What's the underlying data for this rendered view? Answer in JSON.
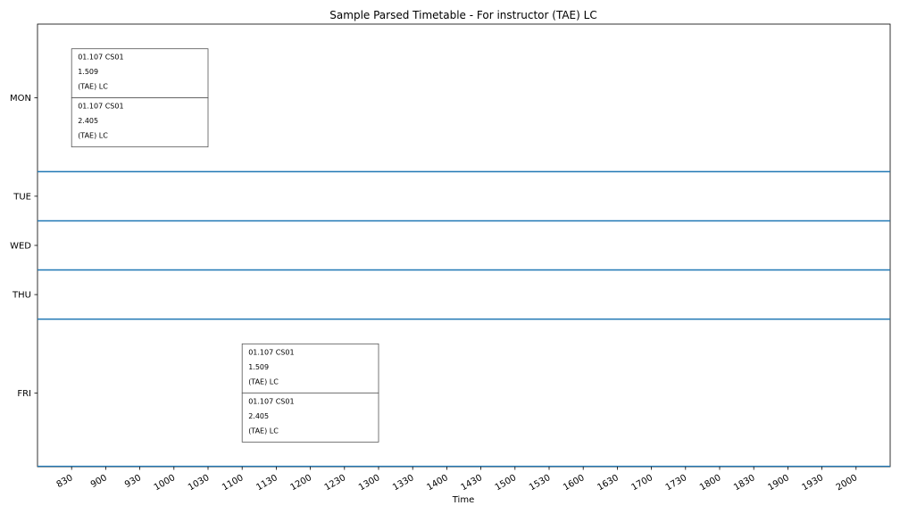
{
  "chart_data": {
    "type": "timetable",
    "title": "Sample Parsed Timetable - For instructor (TAE) LC",
    "xlabel": "Time",
    "ylabel": "",
    "x_ticks": [
      "830",
      "900",
      "930",
      "1000",
      "1030",
      "1100",
      "1130",
      "1200",
      "1230",
      "1300",
      "1330",
      "1400",
      "1430",
      "1500",
      "1530",
      "1600",
      "1630",
      "1700",
      "1730",
      "1800",
      "1830",
      "1900",
      "1930",
      "2000"
    ],
    "xlim_hours": [
      8.0,
      20.5
    ],
    "days": [
      "MON",
      "TUE",
      "WED",
      "THU",
      "FRI"
    ],
    "day_row_heights": [
      3,
      1,
      1,
      1,
      3
    ],
    "colors": {
      "divider": "#1f77b4",
      "box_border": "#555555",
      "frame": "#000000"
    },
    "events": [
      {
        "day": "MON",
        "start": "830",
        "end": "1030",
        "lines": [
          "01.107 CS01",
          "1.509",
          "(TAE) LC"
        ]
      },
      {
        "day": "MON",
        "start": "830",
        "end": "1030",
        "lines": [
          "01.107 CS01",
          "2.405",
          "(TAE) LC"
        ]
      },
      {
        "day": "FRI",
        "start": "1100",
        "end": "1300",
        "lines": [
          "01.107 CS01",
          "1.509",
          "(TAE) LC"
        ]
      },
      {
        "day": "FRI",
        "start": "1100",
        "end": "1300",
        "lines": [
          "01.107 CS01",
          "2.405",
          "(TAE) LC"
        ]
      }
    ]
  }
}
